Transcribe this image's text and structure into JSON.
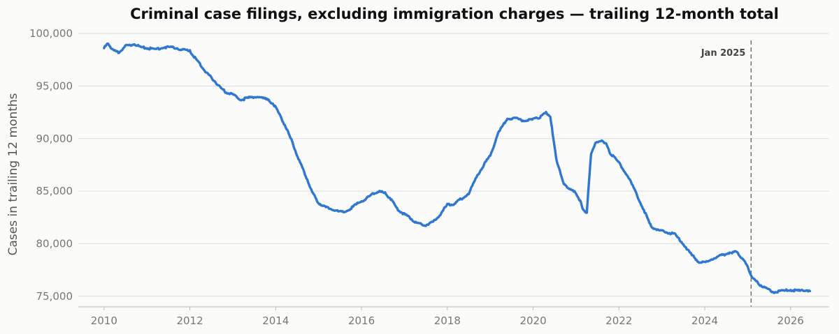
{
  "chart_data": {
    "type": "line",
    "title": "Criminal case filings, excluding immigration charges — trailing 12-month total",
    "ylabel": "Cases in trailing 12 months",
    "xlim": [
      2009.4,
      2026.9
    ],
    "ylim": [
      74000,
      100200
    ],
    "yticks": [
      75000,
      80000,
      85000,
      90000,
      95000,
      100000
    ],
    "ytick_labels": [
      "75,000",
      "80,000",
      "85,000",
      "90,000",
      "95,000",
      "100,000"
    ],
    "xticks": [
      2010,
      2012,
      2014,
      2016,
      2018,
      2020,
      2022,
      2024,
      2026
    ],
    "xtick_labels": [
      "2010",
      "2012",
      "2014",
      "2016",
      "2018",
      "2020",
      "2022",
      "2024",
      "2026"
    ],
    "grid": "horizontal",
    "colors": {
      "series": "#2f77d0",
      "reference_line": "#777777"
    },
    "annotations": [
      {
        "type": "vline",
        "x": 2025.08,
        "label": "Jan 2025",
        "style": "dashed"
      }
    ],
    "series": [
      {
        "x": [
          2010.0,
          2010.1,
          2010.2,
          2010.35,
          2010.5,
          2010.7,
          2010.85,
          2011.0,
          2011.2,
          2011.4,
          2011.6,
          2011.8,
          2012.0,
          2012.1,
          2012.25,
          2012.4,
          2012.55,
          2012.7,
          2012.85,
          2013.0,
          2013.2,
          2013.4,
          2013.6,
          2013.8,
          2013.95,
          2014.1,
          2014.25,
          2014.4,
          2014.55,
          2014.7,
          2014.85,
          2015.0,
          2015.15,
          2015.3,
          2015.5,
          2015.7,
          2015.9,
          2016.1,
          2016.25,
          2016.4,
          2016.55,
          2016.7,
          2016.85,
          2017.0,
          2017.15,
          2017.3,
          2017.5,
          2017.65,
          2017.8,
          2018.0,
          2018.15,
          2018.3,
          2018.5,
          2018.7,
          2018.85,
          2019.0,
          2019.2,
          2019.4,
          2019.6,
          2019.8,
          2020.0,
          2020.1,
          2020.2,
          2020.3,
          2020.4,
          2020.55,
          2020.7,
          2020.85,
          2021.0,
          2021.1,
          2021.15,
          2021.25,
          2021.35,
          2021.45,
          2021.6,
          2021.7,
          2021.8,
          2022.0,
          2022.2,
          2022.4,
          2022.6,
          2022.75,
          2022.9,
          2023.1,
          2023.3,
          2023.5,
          2023.7,
          2023.85,
          2024.0,
          2024.2,
          2024.4,
          2024.6,
          2024.75,
          2024.9,
          2025.0,
          2025.1,
          2025.25,
          2025.4,
          2025.6,
          2025.8,
          2026.0,
          2026.2,
          2026.35,
          2026.45
        ],
        "y": [
          98600,
          99100,
          98400,
          98200,
          98800,
          99000,
          98700,
          98600,
          98500,
          98700,
          98700,
          98500,
          98300,
          97800,
          97000,
          96200,
          95600,
          94900,
          94400,
          94200,
          93700,
          93900,
          94000,
          93700,
          93300,
          92200,
          91000,
          89500,
          87900,
          86500,
          84900,
          83900,
          83500,
          83300,
          83000,
          83200,
          83800,
          84300,
          84700,
          85000,
          84800,
          84200,
          83200,
          82800,
          82400,
          81900,
          81800,
          82000,
          82600,
          83700,
          83800,
          84200,
          84800,
          86500,
          87500,
          88400,
          90600,
          91900,
          91900,
          91700,
          91800,
          92000,
          92100,
          92600,
          92000,
          87900,
          85800,
          85200,
          84800,
          84000,
          83400,
          82900,
          88600,
          89500,
          89900,
          89500,
          88600,
          87700,
          86500,
          84800,
          83000,
          81600,
          81300,
          81100,
          80900,
          80000,
          78900,
          78300,
          78200,
          78600,
          78900,
          79200,
          79200,
          78500,
          77800,
          76800,
          76200,
          75800,
          75400,
          75500,
          75600,
          75500,
          75600,
          75500
        ]
      }
    ]
  }
}
